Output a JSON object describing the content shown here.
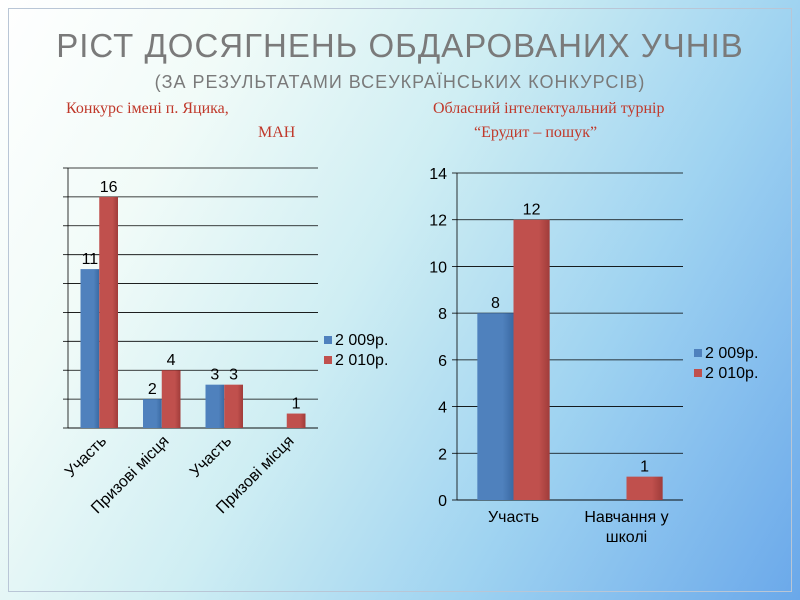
{
  "title": "РІСТ ДОСЯГНЕНЬ ОБДАРОВАНИХ УЧНІВ",
  "subtitle": "(ЗА РЕЗУЛЬТАТАМИ ВСЕУКРАЇНСЬКИХ КОНКУРСІВ)",
  "left_heading": {
    "line1": "Конкурс імені п. Яцика,",
    "line2": "МАН"
  },
  "right_heading": {
    "line1": "Обласний інтелектуальний турнір",
    "line2": "“Ерудит – пошук”"
  },
  "colors": {
    "series1": "#4f81bd",
    "series2": "#c0504d",
    "heading": "#c0392b",
    "title": "#7a7a7a"
  },
  "chart_data": [
    {
      "type": "bar",
      "title": "",
      "xlabel": "",
      "ylabel": "",
      "categories": [
        "Участь",
        "Призові місця",
        "Участь",
        "Призові місця"
      ],
      "series": [
        {
          "name": "2 009р.",
          "values": [
            11,
            2,
            3,
            null
          ]
        },
        {
          "name": "2 010р.",
          "values": [
            16,
            4,
            3,
            1
          ]
        }
      ],
      "ylim": [
        0,
        18
      ],
      "y_tick_labels_visible": false,
      "grid": true,
      "legend": "right"
    },
    {
      "type": "bar",
      "title": "",
      "xlabel": "",
      "ylabel": "",
      "categories": [
        "Участь",
        "Навчання у школі"
      ],
      "series": [
        {
          "name": "2 009р.",
          "values": [
            8,
            null
          ]
        },
        {
          "name": "2 010р.",
          "values": [
            12,
            1
          ]
        }
      ],
      "ylim": [
        0,
        14
      ],
      "yticks": [
        0,
        2,
        4,
        6,
        8,
        10,
        12,
        14
      ],
      "grid": true,
      "legend": "right"
    }
  ]
}
